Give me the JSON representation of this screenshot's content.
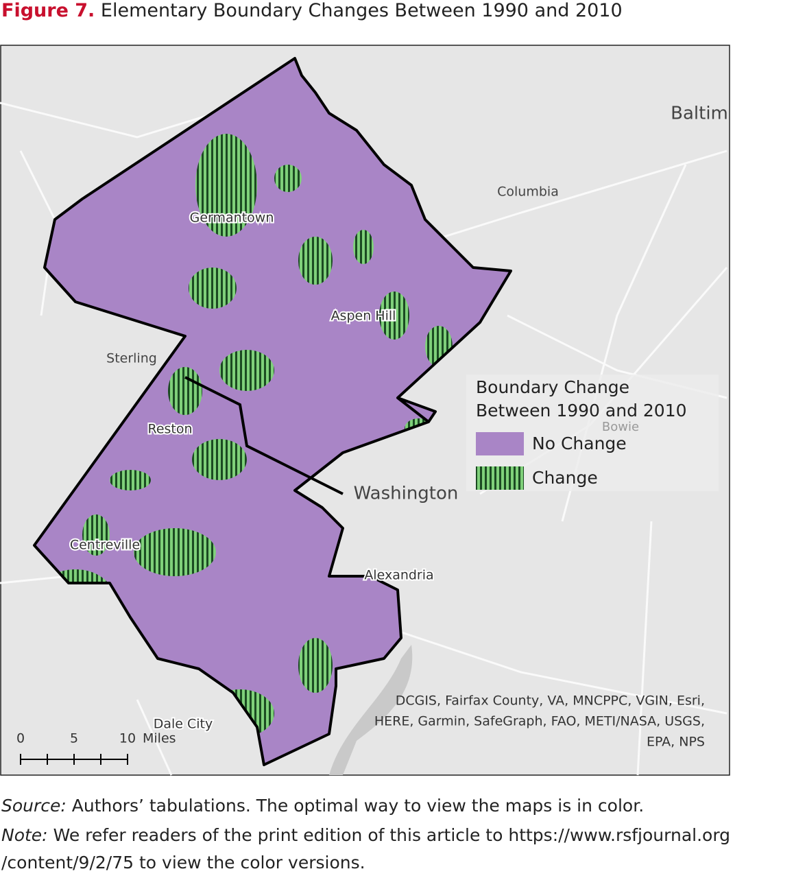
{
  "figure": {
    "label": "Figure 7.",
    "title": "Elementary Boundary Changes Between 1990 and 2010"
  },
  "map": {
    "places": [
      {
        "name": "Baltim",
        "style": "large"
      },
      {
        "name": "Columbia",
        "style": "normal"
      },
      {
        "name": "Germantown",
        "style": "halo"
      },
      {
        "name": "Aspen Hill",
        "style": "halo"
      },
      {
        "name": "Sterling",
        "style": "normal"
      },
      {
        "name": "Reston",
        "style": "halo"
      },
      {
        "name": "Bowie",
        "style": "faint"
      },
      {
        "name": "Washington",
        "style": "large"
      },
      {
        "name": "Centreville",
        "style": "halo"
      },
      {
        "name": "Alexandria",
        "style": "halo"
      },
      {
        "name": "Dale City",
        "style": "halo"
      }
    ],
    "legend": {
      "title": [
        "Boundary Change",
        "Between 1990 and 2010"
      ],
      "items": [
        {
          "label": "No Change",
          "color": "#a985c6"
        },
        {
          "label": "Change",
          "color": "#3fa34d"
        }
      ]
    },
    "scale_bar": {
      "ticks": [
        "0",
        "5",
        "10"
      ],
      "unit": "Miles"
    },
    "attribution": [
      "DCGIS, Fairfax County, VA, MNCPPC, VGIN, Esri,",
      "HERE, Garmin, SafeGraph, FAO, METI/NASA, USGS,",
      "EPA, NPS"
    ]
  },
  "source": {
    "label": "Source:",
    "text": "Authors’ tabulations. The optimal way to view the maps is in color."
  },
  "note": {
    "label": "Note:",
    "lines": [
      "We refer readers of the print edition of this article to https://www.rsfjournal.org",
      "/content/9/2/75 to view the color versions."
    ]
  }
}
